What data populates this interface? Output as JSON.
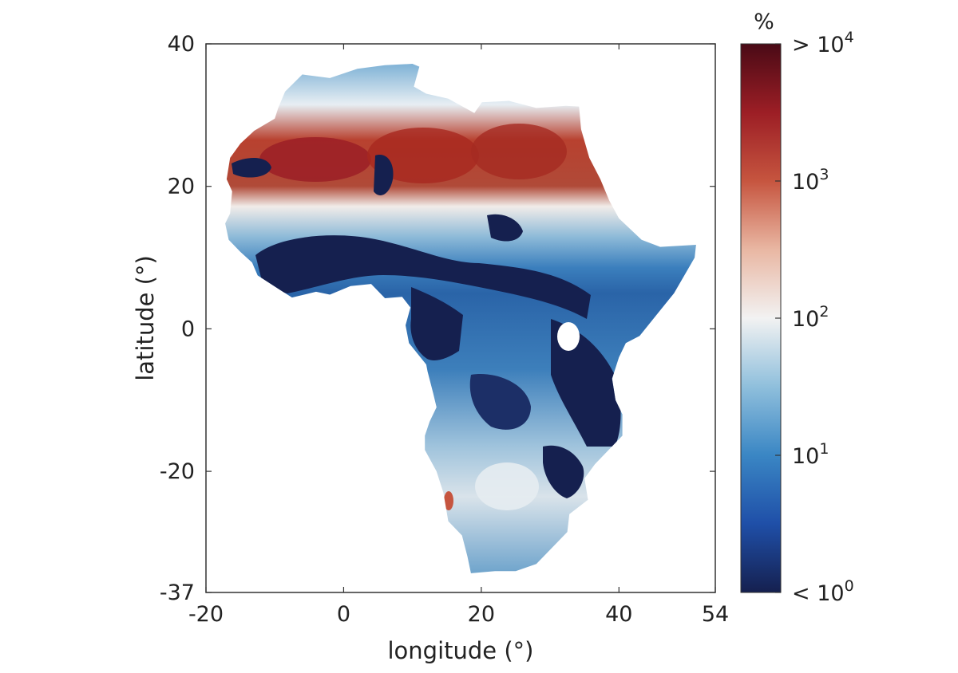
{
  "map": {
    "x_axis": {
      "label": "longitude (°)",
      "range": [
        -20,
        54
      ],
      "ticks": [
        {
          "value": -20,
          "label": "-20"
        },
        {
          "value": 0,
          "label": "0"
        },
        {
          "value": 20,
          "label": "20"
        },
        {
          "value": 40,
          "label": "40"
        },
        {
          "value": 54,
          "label": "54"
        }
      ]
    },
    "y_axis": {
      "label": "latitude (°)",
      "range": [
        -37,
        40
      ],
      "ticks": [
        {
          "value": 40,
          "label": "40"
        },
        {
          "value": 20,
          "label": "20"
        },
        {
          "value": 0,
          "label": "0"
        },
        {
          "value": -20,
          "label": "-20"
        },
        {
          "value": -37,
          "label": "-37"
        }
      ]
    },
    "colorbar": {
      "unit": "%",
      "scale": "log",
      "range": [
        1,
        10000
      ],
      "colors": [
        "#15204f",
        "#1f4fa8",
        "#3a86c4",
        "#8fbfdc",
        "#f2f2f2",
        "#e9b7a3",
        "#c6553f",
        "#9c1e25",
        "#4a0a16"
      ],
      "ticks": [
        {
          "exp": 4,
          "prefix": "> 10",
          "sup": "4"
        },
        {
          "exp": 3,
          "prefix": "10",
          "sup": "3"
        },
        {
          "exp": 2,
          "prefix": "10",
          "sup": "2"
        },
        {
          "exp": 1,
          "prefix": "10",
          "sup": "1"
        },
        {
          "exp": 0,
          "prefix": "< 10",
          "sup": "0"
        }
      ]
    }
  }
}
